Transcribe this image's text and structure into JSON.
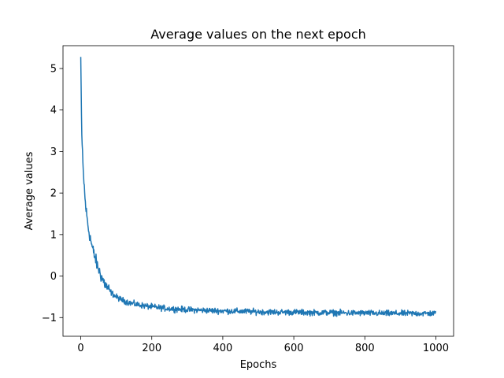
{
  "chart_data": {
    "type": "line",
    "title": "Average values on the next epoch",
    "xlabel": "Epochs",
    "ylabel": "Average values",
    "xlim": [
      -50,
      1050
    ],
    "ylim": [
      -1.45,
      5.55
    ],
    "xticks": [
      0,
      200,
      400,
      600,
      800,
      1000
    ],
    "yticks": [
      -1,
      0,
      1,
      2,
      3,
      4,
      5
    ],
    "grid": false,
    "legend": "none",
    "series_color": "#1f77b4",
    "series": [
      {
        "x": [
          0,
          1,
          2,
          3,
          5,
          7,
          10,
          12,
          15,
          18,
          20,
          22,
          25,
          28,
          30,
          35,
          40,
          45,
          50,
          55,
          60,
          65,
          70,
          75,
          80,
          85,
          90,
          95,
          100,
          110,
          120,
          130,
          140,
          150,
          160,
          170,
          180,
          190,
          200,
          220,
          240,
          260,
          280,
          300,
          330,
          360,
          400,
          450,
          500,
          550,
          600,
          650,
          700,
          750,
          800,
          850,
          900,
          950,
          1000
        ],
        "y": [
          5.28,
          4.6,
          3.9,
          3.4,
          2.9,
          2.5,
          2.15,
          1.85,
          1.6,
          1.38,
          1.25,
          1.12,
          1.0,
          0.88,
          0.78,
          0.6,
          0.45,
          0.3,
          0.18,
          0.05,
          -0.05,
          -0.14,
          -0.22,
          -0.28,
          -0.34,
          -0.39,
          -0.43,
          -0.47,
          -0.5,
          -0.55,
          -0.59,
          -0.62,
          -0.65,
          -0.67,
          -0.69,
          -0.7,
          -0.72,
          -0.73,
          -0.74,
          -0.76,
          -0.78,
          -0.79,
          -0.8,
          -0.81,
          -0.82,
          -0.83,
          -0.84,
          -0.85,
          -0.86,
          -0.87,
          -0.87,
          -0.88,
          -0.88,
          -0.89,
          -0.89,
          -0.9,
          -0.9,
          -0.9,
          -0.9
        ],
        "noise": 0.065
      }
    ]
  }
}
